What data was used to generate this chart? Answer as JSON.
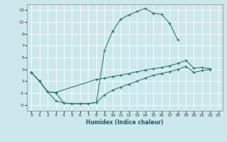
{
  "xlabel": "Humidex (Indice chaleur)",
  "xlim": [
    -0.5,
    23.5
  ],
  "ylim": [
    -4,
    14
  ],
  "xticks": [
    0,
    1,
    2,
    3,
    4,
    5,
    6,
    7,
    8,
    9,
    10,
    11,
    12,
    13,
    14,
    15,
    16,
    17,
    18,
    19,
    20,
    21,
    22,
    23
  ],
  "yticks": [
    -3,
    -1,
    1,
    3,
    5,
    7,
    9,
    11,
    13
  ],
  "background_color": "#cce8ec",
  "line_color": "#2e7d6e",
  "grid_color": "#ffffff",
  "line1": {
    "x": [
      0,
      1,
      2,
      3,
      4,
      5,
      6,
      7,
      8,
      9,
      10,
      11,
      12,
      13,
      14,
      15,
      16,
      17,
      18
    ],
    "y": [
      2.5,
      1.0,
      -0.8,
      -2.3,
      -2.7,
      -2.8,
      -2.8,
      -2.8,
      -2.6,
      6.2,
      9.5,
      11.5,
      12.2,
      12.8,
      13.3,
      12.5,
      12.3,
      10.8,
      8.0
    ]
  },
  "line2": {
    "x": [
      0,
      1,
      2,
      3,
      8,
      9,
      10,
      11,
      12,
      13,
      14,
      15,
      16,
      17,
      18,
      19,
      20,
      21,
      22
    ],
    "y": [
      2.5,
      1.0,
      -0.8,
      -0.9,
      1.3,
      1.5,
      1.8,
      2.0,
      2.3,
      2.6,
      2.9,
      3.1,
      3.3,
      3.6,
      4.0,
      4.5,
      3.2,
      3.3,
      3.1
    ]
  },
  "line3": {
    "x": [
      0,
      1,
      2,
      3,
      4,
      5,
      6,
      7,
      8,
      9,
      10,
      11,
      12,
      13,
      14,
      15,
      16,
      17,
      18,
      19,
      20,
      21,
      22
    ],
    "y": [
      2.5,
      1.0,
      -0.8,
      -1.0,
      -2.7,
      -2.8,
      -2.8,
      -2.8,
      -2.6,
      -1.3,
      -0.5,
      0.0,
      0.5,
      1.0,
      1.5,
      2.0,
      2.3,
      2.6,
      3.0,
      3.5,
      2.5,
      2.8,
      3.0
    ]
  }
}
